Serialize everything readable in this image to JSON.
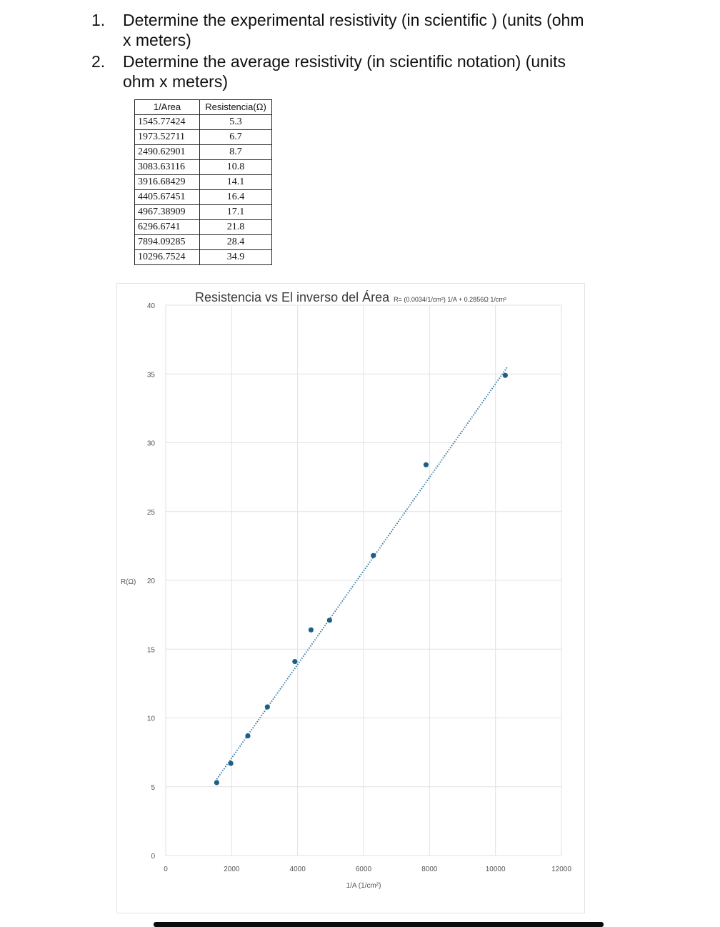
{
  "questions": [
    {
      "number": "1.",
      "text": "Determine the experimental resistivity (in scientific ) (units (ohm x meters)"
    },
    {
      "number": "2.",
      "text": "Determine the average resistivity (in scientific notation) (units ohm x meters)"
    }
  ],
  "table": {
    "headers": [
      "1/Area",
      "Resistencia(Ω)"
    ],
    "rows": [
      [
        "1545.77424",
        "5.3"
      ],
      [
        "1973.52711",
        "6.7"
      ],
      [
        "2490.62901",
        "8.7"
      ],
      [
        "3083.63116",
        "10.8"
      ],
      [
        "3916.68429",
        "14.1"
      ],
      [
        "4405.67451",
        "16.4"
      ],
      [
        "4967.38909",
        "17.1"
      ],
      [
        "6296.6741",
        "21.8"
      ],
      [
        "7894.09285",
        "28.4"
      ],
      [
        "10296.7524",
        "34.9"
      ]
    ]
  },
  "chart_data": {
    "type": "scatter",
    "title": "Resistencia vs El inverso del Área",
    "equation": "R= (0.0034/1/cm²) 1/A + 0.2856Ω 1/cm²",
    "xlabel": "1/A (1/cm²)",
    "ylabel": "R(Ω)",
    "xlim": [
      0,
      12000
    ],
    "ylim": [
      0,
      40
    ],
    "xticks": [
      "0",
      "2000",
      "4000",
      "6000",
      "8000",
      "10000",
      "12000"
    ],
    "yticks": [
      "0",
      "5",
      "10",
      "15",
      "20",
      "25",
      "30",
      "35",
      "40"
    ],
    "grid": true,
    "point_color": "#1f5f86",
    "trendline_color": "#3a7ca5",
    "trendline": {
      "slope": 0.0034,
      "intercept": 0.2856,
      "x_range": [
        1545.77424,
        10296.7524
      ]
    },
    "points": [
      {
        "x": 1545.77424,
        "y": 5.3
      },
      {
        "x": 1973.52711,
        "y": 6.7
      },
      {
        "x": 2490.62901,
        "y": 8.7
      },
      {
        "x": 3083.63116,
        "y": 10.8
      },
      {
        "x": 3916.68429,
        "y": 14.1
      },
      {
        "x": 4405.67451,
        "y": 16.4
      },
      {
        "x": 4967.38909,
        "y": 17.1
      },
      {
        "x": 6296.6741,
        "y": 21.8
      },
      {
        "x": 7894.09285,
        "y": 28.4
      },
      {
        "x": 10296.7524,
        "y": 34.9
      }
    ]
  }
}
